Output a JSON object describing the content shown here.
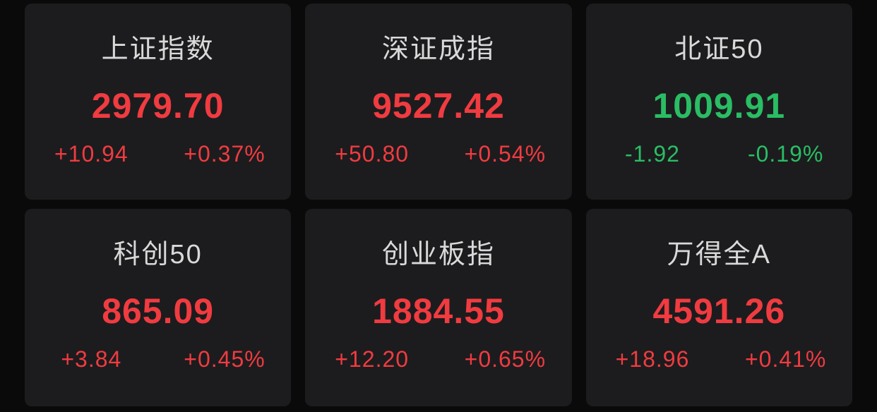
{
  "theme": {
    "page_bg": "#0a0a0b",
    "card_bg": "#1c1c1e",
    "title_color": "#d9d9d9",
    "up_color": "#f03b40",
    "down_color": "#2abd64"
  },
  "indices": [
    {
      "name": "上证指数",
      "value": "2979.70",
      "change": "+10.94",
      "change_pct": "+0.37%",
      "direction": "up"
    },
    {
      "name": "深证成指",
      "value": "9527.42",
      "change": "+50.80",
      "change_pct": "+0.54%",
      "direction": "up"
    },
    {
      "name": "北证50",
      "value": "1009.91",
      "change": "-1.92",
      "change_pct": "-0.19%",
      "direction": "down"
    },
    {
      "name": "科创50",
      "value": "865.09",
      "change": "+3.84",
      "change_pct": "+0.45%",
      "direction": "up"
    },
    {
      "name": "创业板指",
      "value": "1884.55",
      "change": "+12.20",
      "change_pct": "+0.65%",
      "direction": "up"
    },
    {
      "name": "万得全A",
      "value": "4591.26",
      "change": "+18.96",
      "change_pct": "+0.41%",
      "direction": "up"
    }
  ]
}
